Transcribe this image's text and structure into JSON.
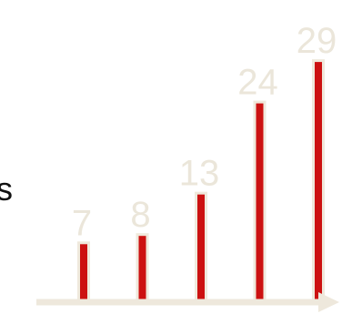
{
  "text": {
    "left_fragment": "s"
  },
  "colors": {
    "bar_fill": "#cc1111",
    "bar_halo": "#efe9dc",
    "value_label": "#ebe6da",
    "axis": "#eee8dc"
  },
  "chart_data": {
    "type": "bar",
    "title": "",
    "xlabel": "",
    "ylabel": "",
    "categories": [
      "",
      "",
      "",
      "",
      ""
    ],
    "values": [
      7,
      8,
      13,
      24,
      29
    ],
    "data_labels": [
      "7",
      "8",
      "13",
      "24",
      "29"
    ],
    "ylim": [
      0,
      30
    ],
    "grid": false,
    "legend": "none",
    "x_axis_arrow": true,
    "y_axis_visible": false
  }
}
